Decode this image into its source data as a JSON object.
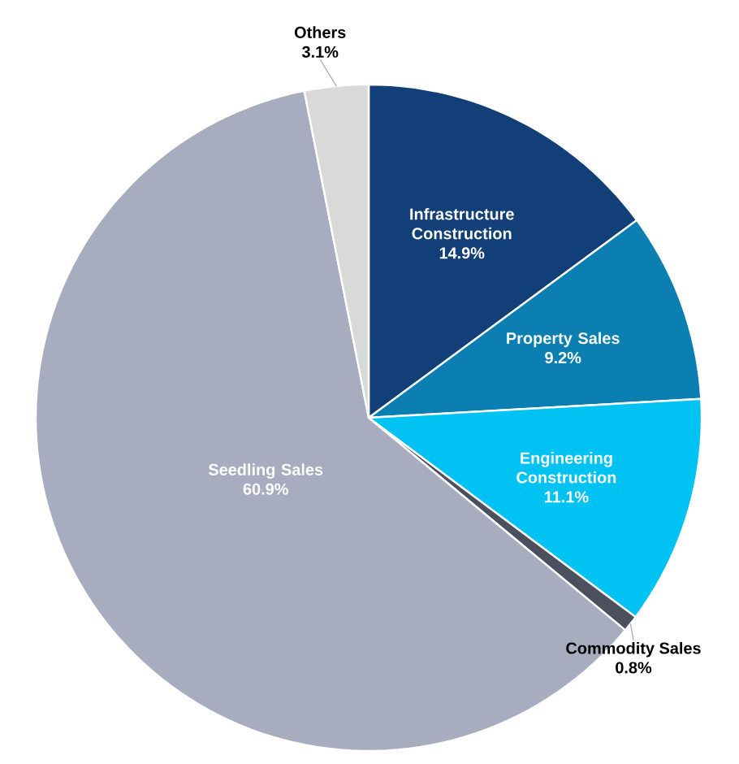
{
  "chart_data": {
    "type": "pie",
    "categories": [
      "Infrastructure Construction",
      "Property Sales",
      "Engineering Construction",
      "Commodity Sales",
      "Seedling Sales",
      "Others"
    ],
    "values": [
      14.9,
      9.2,
      11.1,
      0.8,
      60.9,
      3.1
    ],
    "colors": [
      "#123f78",
      "#0b7fb2",
      "#00c3f3",
      "#4b4f5e",
      "#a8acbf",
      "#d9d9d9"
    ],
    "value_labels": [
      "14.9%",
      "9.2%",
      "11.1%",
      "0.8%",
      "60.9%",
      "3.1%"
    ]
  }
}
